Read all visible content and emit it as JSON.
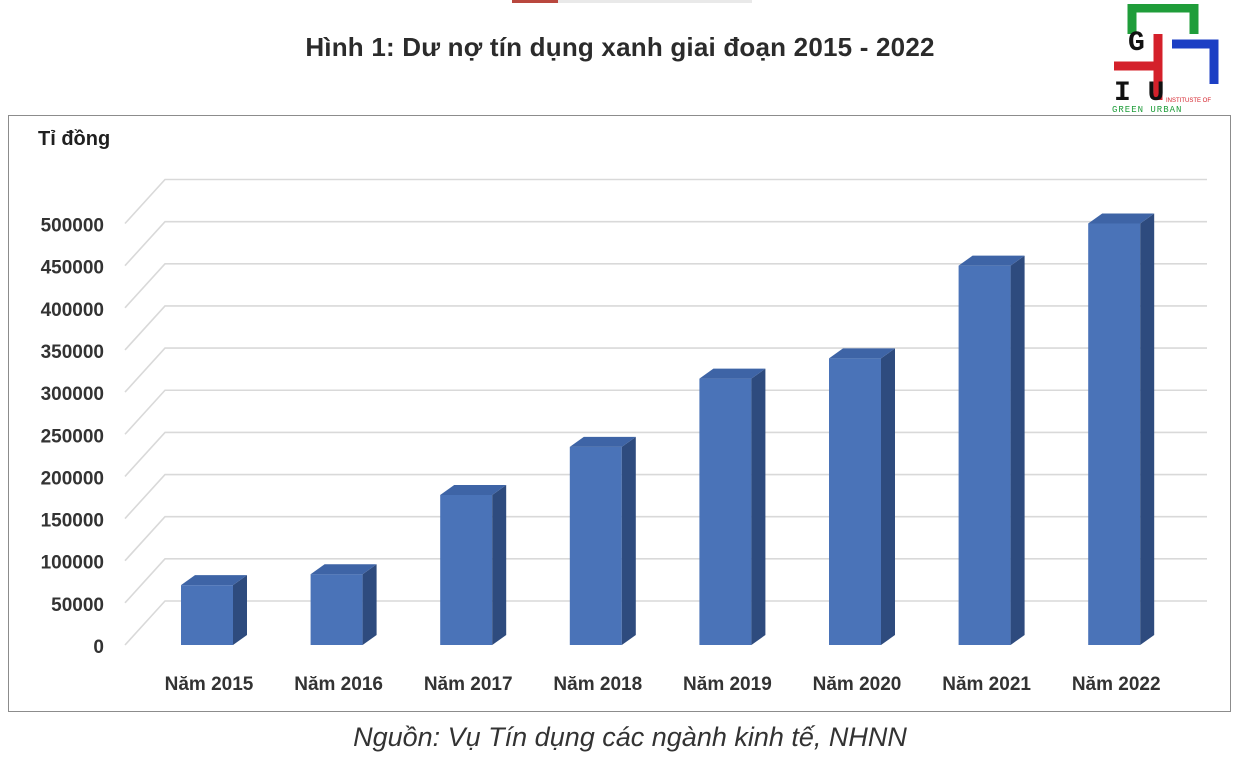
{
  "page": {
    "title": "Hình 1: Dư nợ tín dụng xanh giai đoạn 2015 - 2022",
    "source": "Nguồn: Vụ Tín dụng các ngành kinh tế, NHNN"
  },
  "logo": {
    "top_letters": "G",
    "middle_letters": "I U",
    "small_line1": "INSTITUSTE OF",
    "small_line2": "GREEN URBAN",
    "colors": {
      "green": "#1f9d3a",
      "blue": "#1c3fc4",
      "red": "#d4202a"
    }
  },
  "chart_data": {
    "type": "bar",
    "title": "Hình 1: Dư nợ tín dụng xanh giai đoạn 2015 - 2022",
    "ylabel": "Tỉ đồng",
    "xlabel": "",
    "categories": [
      "Năm 2015",
      "Năm 2016",
      "Năm 2017",
      "Năm 2018",
      "Năm 2019",
      "Năm 2020",
      "Năm 2021",
      "Năm 2022"
    ],
    "values": [
      71000,
      84000,
      178000,
      235000,
      316000,
      340000,
      450000,
      500000
    ],
    "ylim": [
      0,
      500000
    ],
    "yticks": [
      "0",
      "50000",
      "100000",
      "150000",
      "200000",
      "250000",
      "300000",
      "350000",
      "400000",
      "450000",
      "500000"
    ],
    "grid": true,
    "style": "3d-bar",
    "colors": {
      "front": "#4a73b8",
      "side": "#2e4b7e",
      "top": "#3e64a6"
    }
  }
}
